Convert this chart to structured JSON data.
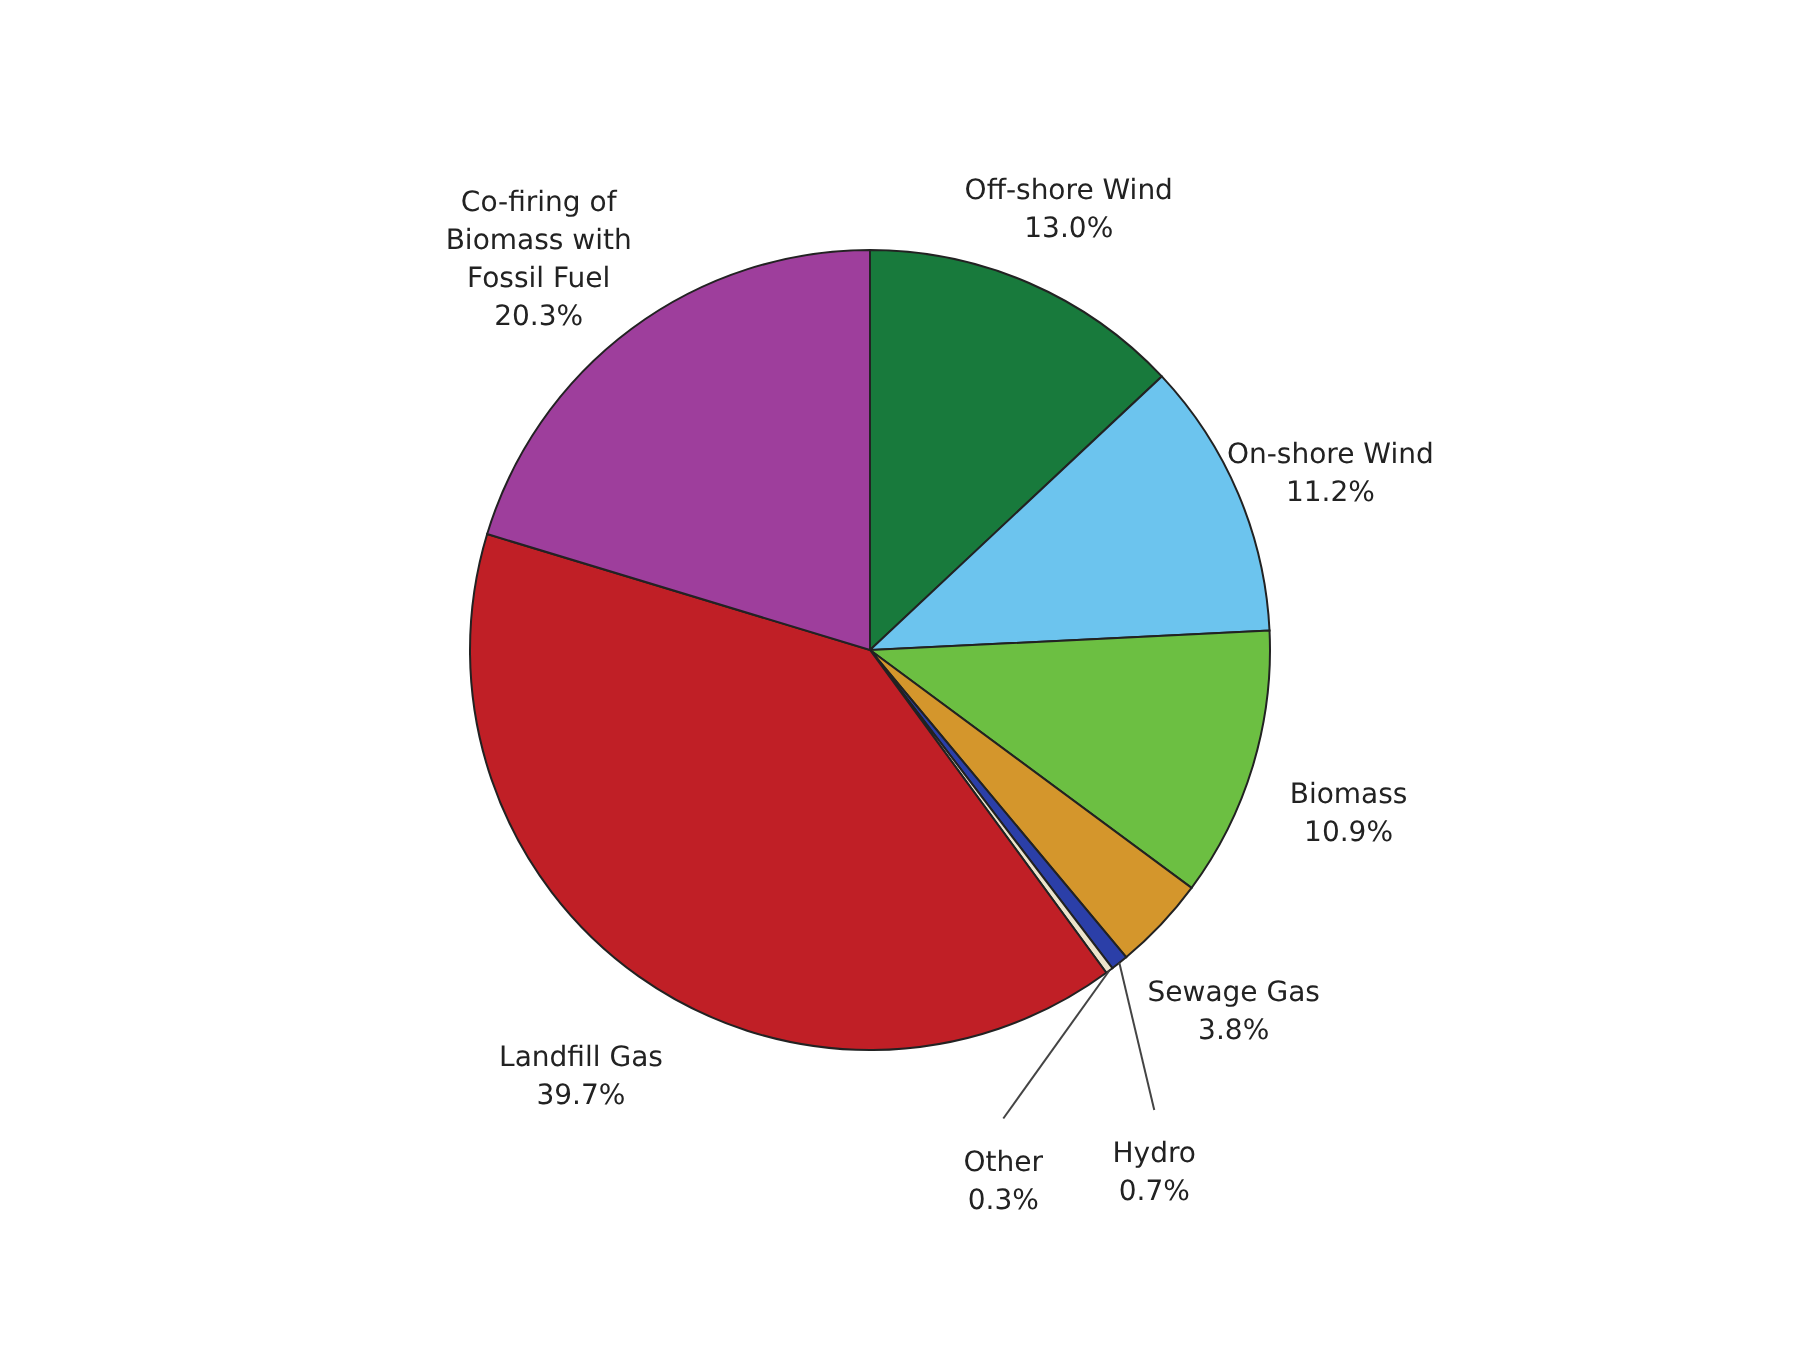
{
  "chart_data": {
    "type": "pie",
    "categories": [
      "Off-shore Wind",
      "On-shore Wind",
      "Biomass",
      "Sewage Gas",
      "Hydro",
      "Other",
      "Landfill Gas",
      "Co-firing of Biomass with Fossil Fuel"
    ],
    "values": [
      13.0,
      11.2,
      10.9,
      3.8,
      0.7,
      0.3,
      39.7,
      20.3
    ],
    "colors": [
      "#187a3c",
      "#6cc4ee",
      "#6cbf42",
      "#d4962c",
      "#2b3fa8",
      "#ece4cc",
      "#c01f26",
      "#9e3e9c"
    ],
    "value_labels": [
      "13.0%",
      "11.2%",
      "10.9%",
      "3.8%",
      "0.7%",
      "0.3%",
      "39.7%",
      "20.3%"
    ],
    "data_labels": true,
    "legend": false
  }
}
